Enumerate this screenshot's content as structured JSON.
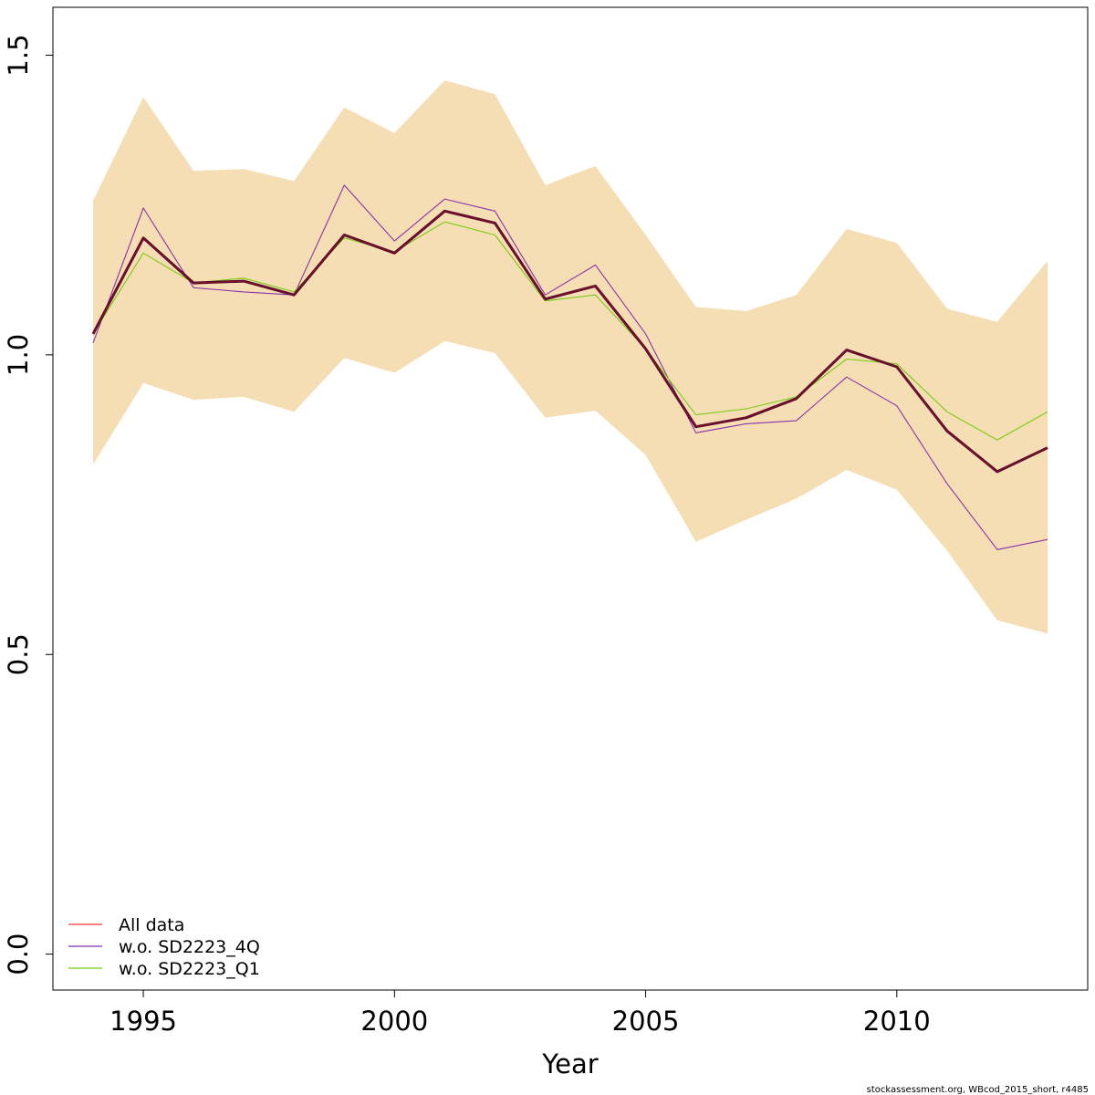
{
  "chart_data": {
    "type": "line",
    "title": "",
    "xlabel": "Year",
    "ylabel": "",
    "xlim": [
      1993.2,
      2013.8
    ],
    "ylim": [
      -0.06,
      1.58
    ],
    "x_ticks": [
      1995,
      2000,
      2005,
      2010
    ],
    "y_ticks": [
      0.0,
      0.5,
      1.0,
      1.5
    ],
    "y_tick_labels": [
      "0.0",
      "0.5",
      "1.0",
      "1.5"
    ],
    "grid": false,
    "legend_position": "bottom-left",
    "x": [
      1994,
      1995,
      1996,
      1997,
      1998,
      1999,
      2000,
      2001,
      2002,
      2003,
      2004,
      2005,
      2006,
      2007,
      2008,
      2009,
      2010,
      2011,
      2012,
      2013
    ],
    "confidence_band": {
      "color": "#F5DEB3",
      "upper": [
        1.257,
        1.43,
        1.307,
        1.31,
        1.29,
        1.413,
        1.37,
        1.458,
        1.435,
        1.283,
        1.315,
        1.2,
        1.08,
        1.073,
        1.1,
        1.21,
        1.187,
        1.077,
        1.055,
        1.157
      ],
      "lower": [
        0.817,
        0.953,
        0.925,
        0.93,
        0.905,
        0.995,
        0.97,
        1.023,
        1.003,
        0.895,
        0.907,
        0.833,
        0.688,
        0.725,
        0.76,
        0.808,
        0.775,
        0.673,
        0.557,
        0.535
      ]
    },
    "series": [
      {
        "name": "All data",
        "color": "#ff3333",
        "values": [
          1.035,
          1.195,
          1.12,
          1.123,
          1.1,
          1.2,
          1.17,
          1.24,
          1.22,
          1.093,
          1.115,
          1.01,
          0.88,
          0.895,
          0.927,
          1.008,
          0.98,
          0.873,
          0.805,
          0.845
        ]
      },
      {
        "name": "w.o. SD2223_4Q",
        "color": "#8833aa",
        "values": [
          1.02,
          1.245,
          1.112,
          1.105,
          1.1,
          1.283,
          1.19,
          1.26,
          1.24,
          1.1,
          1.15,
          1.035,
          0.87,
          0.885,
          0.89,
          0.963,
          0.915,
          0.785,
          0.675,
          0.692
        ]
      },
      {
        "name": "w.o. SD2223_Q1",
        "color": "#77cc11",
        "values": [
          1.035,
          1.17,
          1.12,
          1.128,
          1.105,
          1.195,
          1.172,
          1.222,
          1.2,
          1.09,
          1.1,
          1.01,
          0.9,
          0.91,
          0.93,
          0.993,
          0.985,
          0.905,
          0.858,
          0.905
        ]
      }
    ],
    "overlay_line_color": "#5a0a2a"
  },
  "footer": {
    "text": "stockassessment.org, WBcod_2015_short, r4485"
  }
}
